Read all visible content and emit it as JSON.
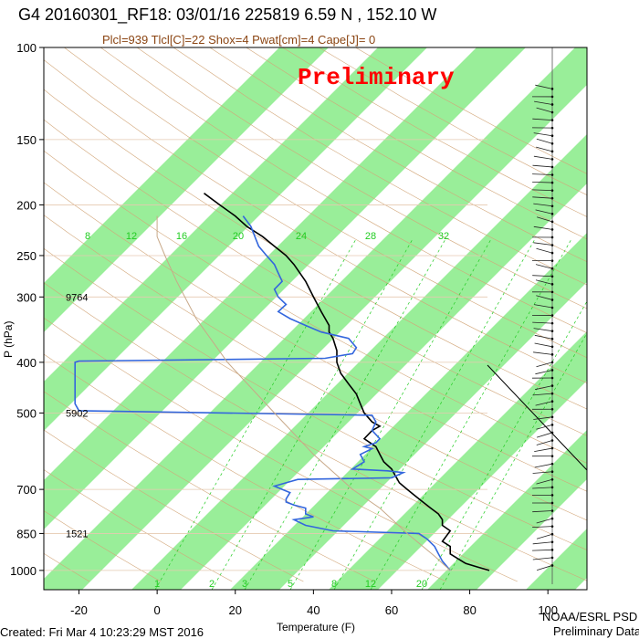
{
  "header": {
    "title": "G4 20160301_RF18: 03/01/16 225819   6.59 N , 152.10 W",
    "subtitle": "Plcl=939 Tlcl[C]=22 Shox=4 Pwat[cm]=4 Cape[J]= 0",
    "watermark": "Preliminary"
  },
  "footer": {
    "created": "Created: Fri Mar  4 10:23:29 MST 2016",
    "credit_line1": "NOAA/ESRL PSD",
    "credit_line2": "Preliminary Data"
  },
  "chart_data": {
    "type": "line",
    "xlabel": "Temperature (F)",
    "ylabel": "P (hPa)",
    "x_ticks": [
      -20,
      0,
      20,
      40,
      60,
      80,
      100
    ],
    "x_tick_labels": [
      "-20",
      "0",
      "20",
      "40",
      "60",
      "80",
      "100"
    ],
    "y_ticks": [
      100,
      150,
      200,
      250,
      300,
      400,
      500,
      700,
      850,
      1000
    ],
    "y_tick_labels": [
      "100",
      "150",
      "200",
      "250",
      "300",
      "400",
      "500",
      "700",
      "850",
      "1000"
    ],
    "xlim": [
      -29,
      110
    ],
    "ylim": [
      1050,
      100
    ],
    "y_scale": "log",
    "height_annotations": [
      {
        "p": 300,
        "label": "9764"
      },
      {
        "p": 500,
        "label": "5902"
      },
      {
        "p": 850,
        "label": "1521"
      }
    ],
    "mixing_ratio_labels": [
      "8",
      "12",
      "16",
      "20",
      "24",
      "28",
      "32"
    ],
    "bottom_mixing_labels": [
      "1",
      "2",
      "3",
      "5",
      "8",
      "12",
      "20"
    ],
    "colors": {
      "temperature": "#000000",
      "dewpoint": "#3366dd",
      "isotherm_band": "#99ee99",
      "dry_adiabat": "#d2a679",
      "mixing_ratio": "#22cc22",
      "parcel": "#c8a888"
    },
    "series": [
      {
        "name": "",
        "role": "temperature",
        "points": [
          [
            85,
            1000
          ],
          [
            82,
            985
          ],
          [
            79,
            970
          ],
          [
            77,
            950
          ],
          [
            75,
            930
          ],
          [
            75,
            900
          ],
          [
            73,
            880
          ],
          [
            74,
            860
          ],
          [
            75,
            840
          ],
          [
            73,
            820
          ],
          [
            73,
            800
          ],
          [
            72,
            780
          ],
          [
            70,
            760
          ],
          [
            68,
            740
          ],
          [
            66,
            720
          ],
          [
            64,
            700
          ],
          [
            62,
            680
          ],
          [
            61,
            660
          ],
          [
            60,
            640
          ],
          [
            58,
            620
          ],
          [
            57,
            600
          ],
          [
            56,
            580
          ],
          [
            53,
            560
          ],
          [
            55,
            540
          ],
          [
            57,
            530
          ],
          [
            55,
            520
          ],
          [
            53,
            500
          ],
          [
            52,
            480
          ],
          [
            51,
            460
          ],
          [
            49,
            440
          ],
          [
            47,
            420
          ],
          [
            46,
            400
          ],
          [
            46,
            380
          ],
          [
            45,
            360
          ],
          [
            44,
            350
          ],
          [
            44,
            340
          ],
          [
            42,
            320
          ],
          [
            40,
            300
          ],
          [
            38,
            280
          ],
          [
            35,
            260
          ],
          [
            33,
            250
          ],
          [
            30,
            240
          ],
          [
            27,
            230
          ],
          [
            23,
            220
          ],
          [
            20,
            210
          ],
          [
            16,
            200
          ],
          [
            12,
            190
          ]
        ]
      },
      {
        "name": "",
        "role": "dewpoint",
        "points": [
          [
            75,
            1000
          ],
          [
            74,
            980
          ],
          [
            73,
            960
          ],
          [
            72,
            930
          ],
          [
            71,
            900
          ],
          [
            69,
            870
          ],
          [
            67,
            850
          ],
          [
            45,
            840
          ],
          [
            38,
            820
          ],
          [
            35,
            800
          ],
          [
            40,
            790
          ],
          [
            38,
            780
          ],
          [
            38,
            760
          ],
          [
            35,
            750
          ],
          [
            33,
            740
          ],
          [
            33,
            730
          ],
          [
            34,
            710
          ],
          [
            32,
            700
          ],
          [
            30,
            690
          ],
          [
            33,
            680
          ],
          [
            36,
            670
          ],
          [
            60,
            665
          ],
          [
            63,
            650
          ],
          [
            59,
            645
          ],
          [
            50,
            640
          ],
          [
            53,
            620
          ],
          [
            52,
            600
          ],
          [
            55,
            585
          ],
          [
            53,
            580
          ],
          [
            56,
            570
          ],
          [
            57,
            560
          ],
          [
            55,
            540
          ],
          [
            56,
            520
          ],
          [
            55,
            505
          ],
          [
            -20,
            495
          ],
          [
            -21,
            480
          ],
          [
            -21,
            460
          ],
          [
            -21,
            440
          ],
          [
            -21,
            420
          ],
          [
            -21,
            400
          ],
          [
            -20,
            398
          ],
          [
            43,
            393
          ],
          [
            50,
            385
          ],
          [
            51,
            375
          ],
          [
            49,
            360
          ],
          [
            42,
            350
          ],
          [
            38,
            340
          ],
          [
            34,
            330
          ],
          [
            31,
            320
          ],
          [
            33,
            310
          ],
          [
            31,
            300
          ],
          [
            30,
            290
          ],
          [
            32,
            280
          ],
          [
            31,
            270
          ],
          [
            30,
            260
          ],
          [
            28,
            250
          ],
          [
            26,
            240
          ],
          [
            25,
            230
          ],
          [
            24,
            220
          ],
          [
            22,
            210
          ]
        ]
      },
      {
        "name": "",
        "role": "parcel",
        "points": [
          [
            75,
            1000
          ],
          [
            71,
            939
          ],
          [
            64,
            850
          ],
          [
            57,
            760
          ],
          [
            50,
            700
          ],
          [
            40,
            600
          ],
          [
            30,
            500
          ],
          [
            18,
            400
          ],
          [
            10,
            330
          ],
          [
            5,
            280
          ],
          [
            2,
            250
          ],
          [
            0,
            230
          ],
          [
            0,
            210
          ]
        ]
      }
    ]
  }
}
